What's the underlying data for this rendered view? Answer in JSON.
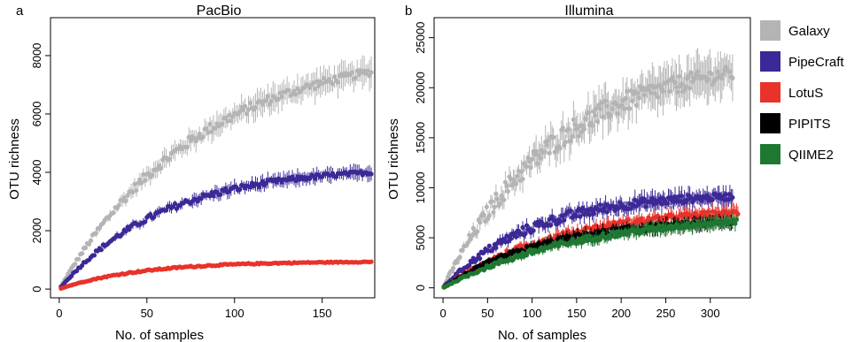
{
  "chart_data": [
    {
      "panel_label": "a",
      "type": "scatter",
      "title": "PacBio",
      "xlabel": "No. of samples",
      "ylabel": "OTU richness",
      "xlim": [
        -5,
        180
      ],
      "ylim": [
        -300,
        9300
      ],
      "xticks": [
        0,
        50,
        100,
        150
      ],
      "yticks": [
        0,
        2000,
        4000,
        6000,
        8000
      ],
      "series": [
        {
          "name": "Galaxy",
          "color": "#b4b4b4",
          "max": 8350,
          "k": 0.0125,
          "n_max": 178
        },
        {
          "name": "PipeCraft",
          "color": "#3c2896",
          "max": 4200,
          "k": 0.017,
          "n_max": 178
        },
        {
          "name": "LotuS",
          "color": "#e8322a",
          "max": 950,
          "k": 0.022,
          "n_max": 178
        }
      ]
    },
    {
      "panel_label": "b",
      "type": "scatter",
      "title": "Illumina",
      "xlabel": "No. of samples",
      "ylabel": "OTU richness",
      "xlim": [
        -10,
        345
      ],
      "ylim": [
        -1000,
        27000
      ],
      "xticks": [
        0,
        50,
        100,
        150,
        200,
        250,
        300
      ],
      "yticks": [
        0,
        5000,
        10000,
        15000,
        20000,
        25000
      ],
      "series": [
        {
          "name": "Galaxy",
          "color": "#b4b4b4",
          "max": 23300,
          "k": 0.0078,
          "n_max": 325
        },
        {
          "name": "PipeCraft",
          "color": "#3c2896",
          "max": 9500,
          "k": 0.01,
          "n_max": 325
        },
        {
          "name": "LotuS",
          "color": "#e8322a",
          "max": 8200,
          "k": 0.0075,
          "n_max": 332
        },
        {
          "name": "PIPITS",
          "color": "#000000",
          "max": 7000,
          "k": 0.0085,
          "n_max": 325
        },
        {
          "name": "QIIME2",
          "color": "#1e7832",
          "max": 7500,
          "k": 0.0065,
          "n_max": 330
        }
      ]
    }
  ],
  "legend": [
    {
      "label": "Galaxy",
      "color": "#b4b4b4"
    },
    {
      "label": "PipeCraft",
      "color": "#3c2896"
    },
    {
      "label": "LotuS",
      "color": "#e8322a"
    },
    {
      "label": "PIPITS",
      "color": "#000000"
    },
    {
      "label": "QIIME2",
      "color": "#1e7832"
    }
  ]
}
